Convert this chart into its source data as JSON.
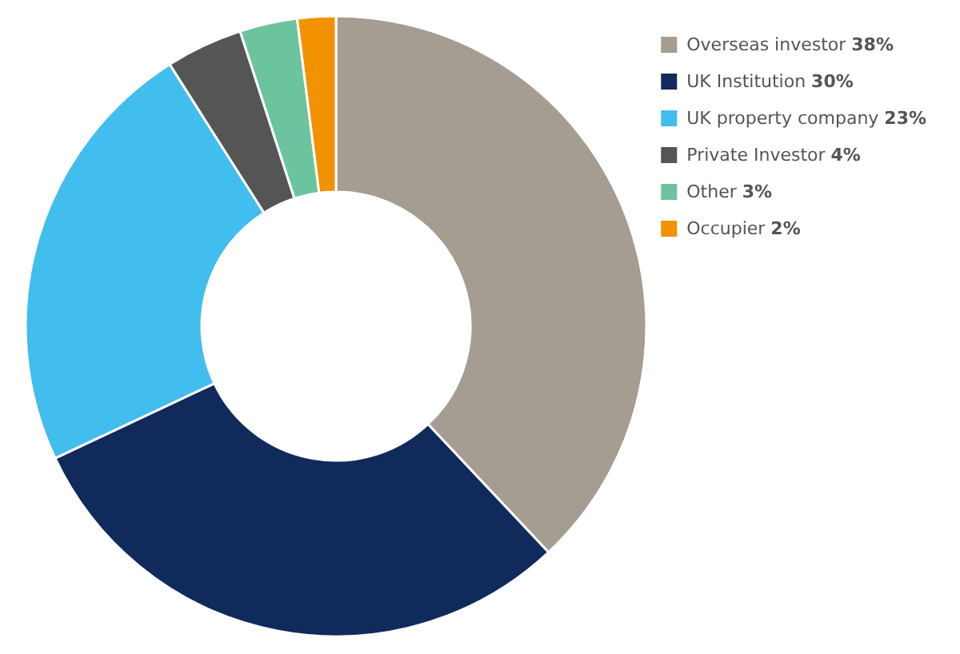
{
  "chart_data": {
    "type": "donut",
    "categories": [
      "Overseas investor",
      "UK Institution",
      "UK property company",
      "Private Investor",
      "Other",
      "Occupier"
    ],
    "values": [
      38,
      30,
      23,
      4,
      3,
      2
    ],
    "value_labels": [
      "38%",
      "30%",
      "23%",
      "4%",
      "3%",
      "2%"
    ],
    "colors": [
      "#a59c92",
      "#0f2a5b",
      "#41bdee",
      "#555555",
      "#6cc49f",
      "#f39200"
    ],
    "legend": "top right"
  }
}
